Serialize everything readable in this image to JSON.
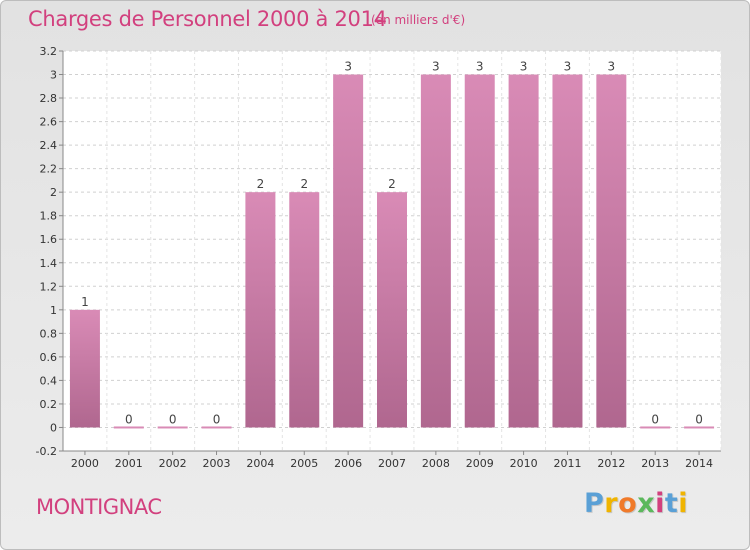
{
  "chart_data": {
    "type": "bar",
    "title": "Charges de Personnel 2000 à 2014",
    "subtitle": "(en milliers d'€)",
    "categories": [
      "2000",
      "2001",
      "2002",
      "2003",
      "2004",
      "2005",
      "2006",
      "2007",
      "2008",
      "2009",
      "2010",
      "2011",
      "2012",
      "2013",
      "2014"
    ],
    "values": [
      1,
      0,
      0,
      0,
      2,
      2,
      3,
      2,
      3,
      3,
      3,
      3,
      3,
      0,
      0
    ],
    "ylim": [
      -0.2,
      3.2
    ],
    "yticks": [
      "-0.2",
      "0",
      "0.2",
      "0.4",
      "0.6",
      "0.8",
      "1",
      "1.2",
      "1.4",
      "1.6",
      "1.8",
      "2",
      "2.2",
      "2.4",
      "2.6",
      "2.8",
      "3",
      "3.2"
    ],
    "grid": true,
    "colors": {
      "bar": "#d98bb6",
      "bar_dark": "#b0678f",
      "text": "#d2407e"
    }
  },
  "place_name": "MONTIGNAC",
  "logo": {
    "letters": [
      "P",
      "r",
      "o",
      "x",
      "i",
      "t",
      "i"
    ],
    "colors": [
      "#5aa0d6",
      "#f0b400",
      "#f07a2a",
      "#5bb85c",
      "#d2407e",
      "#5aa0d6",
      "#f0b400"
    ]
  }
}
